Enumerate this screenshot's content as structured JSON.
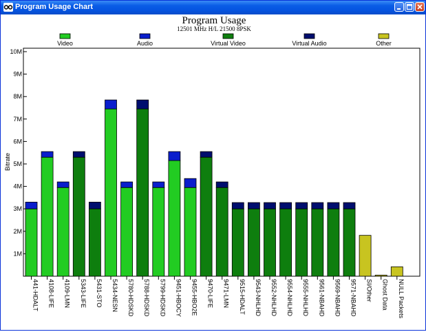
{
  "window": {
    "title": "Program Usage Chart",
    "icons": [
      "app-icon",
      "minimize-icon",
      "maximize-icon",
      "close-icon"
    ]
  },
  "chart_data": {
    "type": "bar",
    "title": "Program Usage",
    "subtitle": "12501 MHz H/L 21500 8PSK",
    "ylabel": "Bitrate",
    "xlabel": "",
    "ylim": [
      0,
      10
    ],
    "yticks": [
      "1M",
      "2M",
      "3M",
      "4M",
      "5M",
      "6M",
      "7M",
      "8M",
      "9M",
      "10M"
    ],
    "stacked": true,
    "grid": false,
    "legend_position": "top",
    "legend": [
      {
        "name": "Video",
        "color": "#22cc22"
      },
      {
        "name": "Audio",
        "color": "#0a1ecc"
      },
      {
        "name": "Virtual Video",
        "color": "#0e7e0e"
      },
      {
        "name": "Virtual Audio",
        "color": "#000e6e"
      },
      {
        "name": "Other",
        "color": "#c8c420"
      }
    ],
    "categories": [
      "441-HDALT",
      "4108-LIFE",
      "4109-LMN",
      "5343-LIFE",
      "5431-STO",
      "5434-NESN",
      "5780-HDSKD",
      "5788-HDSKD",
      "5799-HDSKD",
      "9451-HBOCY",
      "9455-HBO2E",
      "9470-LIFE",
      "9471-LMN",
      "9515-HDALT",
      "9543-NHLHD",
      "9552-NHLHD",
      "9554-NHLHD",
      "9555-NHLHD",
      "9561-NBAHD",
      "9569-NBAHD",
      "9571-NBAHD",
      "SI/Other",
      "Ghost Data",
      "NULL Packets"
    ],
    "bars": [
      {
        "kind": "real",
        "base": 3.0,
        "top": 0.3
      },
      {
        "kind": "real",
        "base": 5.3,
        "top": 0.25
      },
      {
        "kind": "real",
        "base": 3.95,
        "top": 0.25
      },
      {
        "kind": "virtual",
        "base": 5.3,
        "top": 0.25
      },
      {
        "kind": "virtual",
        "base": 3.0,
        "top": 0.3
      },
      {
        "kind": "real",
        "base": 7.45,
        "top": 0.4
      },
      {
        "kind": "real",
        "base": 3.95,
        "top": 0.25
      },
      {
        "kind": "virtual",
        "base": 7.45,
        "top": 0.4
      },
      {
        "kind": "real",
        "base": 3.95,
        "top": 0.25
      },
      {
        "kind": "real",
        "base": 5.15,
        "top": 0.4
      },
      {
        "kind": "real",
        "base": 3.95,
        "top": 0.4
      },
      {
        "kind": "virtual",
        "base": 5.3,
        "top": 0.25
      },
      {
        "kind": "virtual",
        "base": 3.95,
        "top": 0.25
      },
      {
        "kind": "virtual",
        "base": 3.0,
        "top": 0.28
      },
      {
        "kind": "virtual",
        "base": 3.0,
        "top": 0.28
      },
      {
        "kind": "virtual",
        "base": 3.0,
        "top": 0.28
      },
      {
        "kind": "virtual",
        "base": 3.0,
        "top": 0.28
      },
      {
        "kind": "virtual",
        "base": 3.0,
        "top": 0.28
      },
      {
        "kind": "virtual",
        "base": 3.0,
        "top": 0.28
      },
      {
        "kind": "virtual",
        "base": 3.0,
        "top": 0.28
      },
      {
        "kind": "virtual",
        "base": 3.0,
        "top": 0.28
      },
      {
        "kind": "other",
        "base": 1.82,
        "top": 0
      },
      {
        "kind": "other",
        "base": 0.05,
        "top": 0
      },
      {
        "kind": "other",
        "base": 0.42,
        "top": 0
      }
    ]
  }
}
